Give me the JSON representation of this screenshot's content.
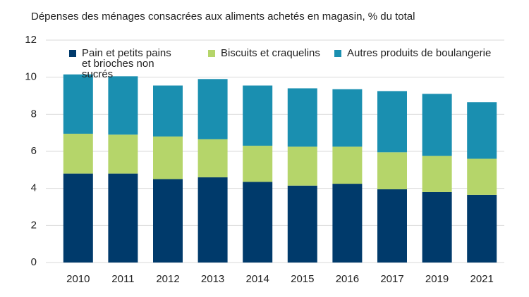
{
  "chart_data": {
    "type": "stacked_bar",
    "title": "Dépenses des ménages consacrées aux aliments achetés en magasin, % du total",
    "categories": [
      "2010",
      "2011",
      "2012",
      "2013",
      "2014",
      "2015",
      "2016",
      "2017",
      "2019",
      "2021"
    ],
    "series": [
      {
        "name": "Pain et petits pains et brioches non sucrés",
        "color": "#003a6b",
        "values": [
          4.8,
          4.8,
          4.5,
          4.6,
          4.35,
          4.15,
          4.25,
          3.95,
          3.8,
          3.65
        ]
      },
      {
        "name": "Biscuits et craquelins",
        "color": "#b5d56a",
        "values": [
          2.15,
          2.1,
          2.3,
          2.05,
          1.95,
          2.1,
          2.0,
          2.0,
          1.95,
          1.95
        ]
      },
      {
        "name": "Autres produits de boulangerie",
        "color": "#1a8fb0",
        "values": [
          3.2,
          3.15,
          2.75,
          3.25,
          3.25,
          3.15,
          3.1,
          3.3,
          3.35,
          3.05
        ]
      }
    ],
    "ylim": [
      0,
      12
    ],
    "yticks": [
      0,
      2,
      4,
      6,
      8,
      10,
      12
    ],
    "grid": true,
    "legend": "top"
  }
}
